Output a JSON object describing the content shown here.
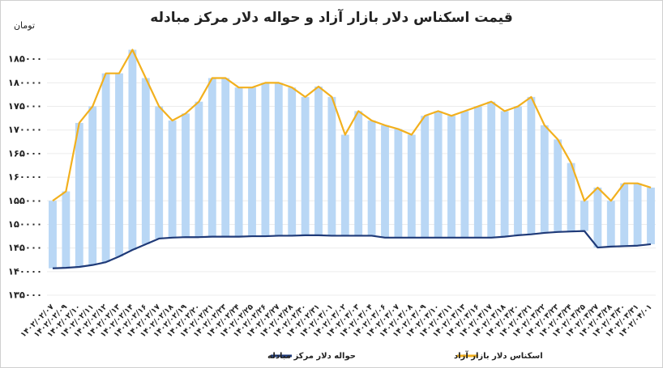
{
  "chart_data": {
    "type": "line",
    "title": "قیمت اسکناس دلار بازار آزاد و حواله دلار مرکز مبادله",
    "y_unit": "تومان",
    "categories": [
      "۱۴۰۲/۰۲/۰۷",
      "۱۴۰۲/۰۲/۰۹",
      "۱۴۰۲/۰۲/۱۰",
      "۱۴۰۲/۰۲/۱۱",
      "۱۴۰۲/۰۲/۱۲",
      "۱۴۰۲/۰۲/۱۳",
      "۱۴۰۲/۰۲/۱۴",
      "۱۴۰۲/۰۲/۱۶",
      "۱۴۰۲/۰۲/۱۷",
      "۱۴۰۲/۰۲/۱۸",
      "۱۴۰۲/۰۲/۱۹",
      "۱۴۰۲/۰۲/۲۰",
      "۱۴۰۲/۰۲/۲۱",
      "۱۴۰۲/۰۲/۲۳",
      "۱۴۰۲/۰۲/۲۴",
      "۱۴۰۲/۰۲/۲۵",
      "۱۴۰۲/۰۲/۲۶",
      "۱۴۰۲/۰۲/۲۷",
      "۱۴۰۲/۰۲/۲۸",
      "۱۴۰۲/۰۲/۳۰",
      "۱۴۰۲/۰۲/۳۱",
      "۱۴۰۲/۰۳/۰۱",
      "۱۴۰۲/۰۳/۰۲",
      "۱۴۰۲/۰۳/۰۳",
      "۱۴۰۲/۰۳/۰۴",
      "۱۴۰۲/۰۳/۰۶",
      "۱۴۰۲/۰۳/۰۷",
      "۱۴۰۲/۰۳/۰۸",
      "۱۴۰۲/۰۳/۰۹",
      "۱۴۰۲/۰۳/۱۰",
      "۱۴۰۲/۰۳/۱۱",
      "۱۴۰۲/۰۳/۱۳",
      "۱۴۰۲/۰۳/۱۶",
      "۱۴۰۲/۰۳/۱۷",
      "۱۴۰۲/۰۳/۱۸",
      "۱۴۰۲/۰۳/۲۰",
      "۱۴۰۲/۰۳/۲۱",
      "۱۴۰۲/۰۳/۲۲",
      "۱۴۰۲/۰۳/۲۳",
      "۱۴۰۲/۰۳/۲۴",
      "۱۴۰۲/۰۳/۲۵",
      "۱۴۰۲/۰۳/۲۷",
      "۱۴۰۲/۰۳/۲۸",
      "۱۴۰۲/۰۳/۳۰",
      "۱۴۰۲/۰۳/۳۱",
      "۱۴۰۲/۰۴/۰۱"
    ],
    "series": [
      {
        "name": "اسکناس دلار بازار آزاد",
        "color": "#f2b01e",
        "values": [
          155000,
          157000,
          171500,
          175000,
          182000,
          182000,
          187000,
          181000,
          175000,
          172000,
          173500,
          176000,
          181000,
          181000,
          179000,
          179000,
          180000,
          180000,
          179000,
          177000,
          179200,
          177000,
          169000,
          174000,
          172000,
          171000,
          170200,
          169000,
          173000,
          174000,
          173000,
          174000,
          175000,
          176000,
          174000,
          175000,
          177000,
          171000,
          168000,
          163000,
          155000,
          157800,
          155000,
          158700,
          158700,
          157800
        ]
      },
      {
        "name": "حواله دلار مرکز مبادله",
        "color": "#1f3a78",
        "values": [
          140700,
          140800,
          141000,
          141400,
          142000,
          143200,
          144600,
          145800,
          147000,
          147200,
          147300,
          147300,
          147400,
          147400,
          147400,
          147500,
          147500,
          147600,
          147600,
          147700,
          147700,
          147600,
          147600,
          147600,
          147600,
          147200,
          147200,
          147200,
          147200,
          147200,
          147200,
          147200,
          147200,
          147200,
          147400,
          147700,
          147900,
          148200,
          148400,
          148500,
          148600,
          145100,
          145300,
          145400,
          145500,
          145800
        ]
      }
    ],
    "hilo_color": "#b9d7f5",
    "ylim": [
      135000,
      190000
    ],
    "yticks": [
      {
        "value": 135000,
        "label": "۱۳۵۰۰۰"
      },
      {
        "value": 140000,
        "label": "۱۴۰۰۰۰"
      },
      {
        "value": 145000,
        "label": "۱۴۵۰۰۰"
      },
      {
        "value": 150000,
        "label": "۱۵۰۰۰۰"
      },
      {
        "value": 155000,
        "label": "۱۵۵۰۰۰"
      },
      {
        "value": 160000,
        "label": "۱۶۰۰۰۰"
      },
      {
        "value": 165000,
        "label": "۱۶۵۰۰۰"
      },
      {
        "value": 170000,
        "label": "۱۷۰۰۰۰"
      },
      {
        "value": 175000,
        "label": "۱۷۵۰۰۰"
      },
      {
        "value": 180000,
        "label": "۱۸۰۰۰۰"
      },
      {
        "value": 185000,
        "label": "۱۸۵۰۰۰"
      }
    ],
    "grid": true
  }
}
